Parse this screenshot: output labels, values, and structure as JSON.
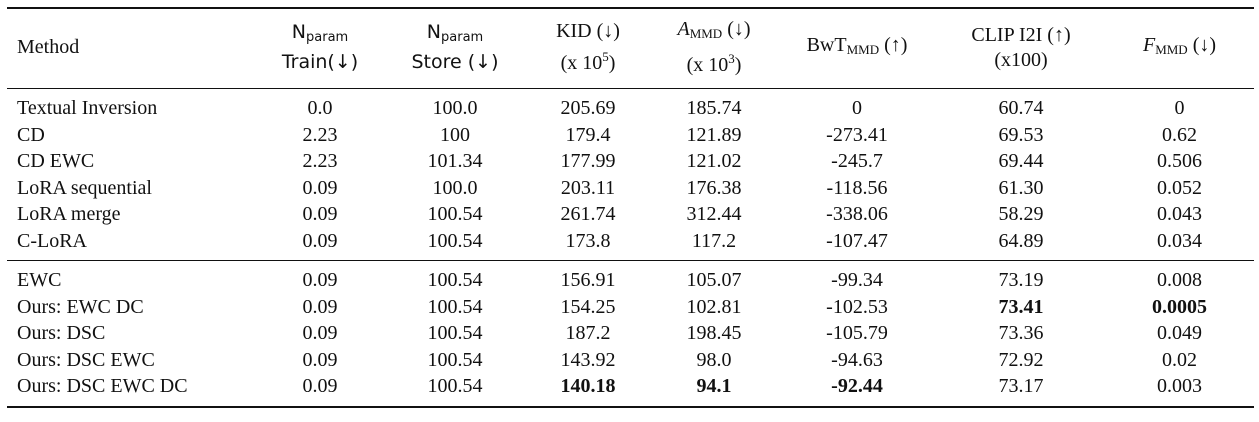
{
  "header": {
    "method": "Method",
    "n_param_sym": "N",
    "n_param_sub": "param",
    "train": "Train(↓)",
    "store": "Store (↓)",
    "kid": "KID (↓)",
    "kid_scale": "(x 10",
    "kid_exp": "5",
    "kid_close": ")",
    "ammd_sym": "A",
    "ammd_sub": "MMD",
    "ammd_arrow": "(↓)",
    "ammd_scale": "(x 10",
    "ammd_exp": "3",
    "ammd_close": ")",
    "bwt_sym": "BwT",
    "bwt_sub": "MMD",
    "bwt_arrow": "(↑)",
    "clip": "CLIP I2I (↑)",
    "clip_scale": "(x100)",
    "f_sym": "F",
    "f_sub": "MMD",
    "f_arrow": "(↓)"
  },
  "group1": [
    {
      "method": "Textual Inversion",
      "train": "0.0",
      "store": "100.0",
      "kid": "205.69",
      "ammd": "185.74",
      "bwt": "0",
      "clip": "60.74",
      "fmmd": "0"
    },
    {
      "method": "CD",
      "train": "2.23",
      "store": "100",
      "kid": "179.4",
      "ammd": "121.89",
      "bwt": "-273.41",
      "clip": "69.53",
      "fmmd": "0.62"
    },
    {
      "method": "CD EWC",
      "train": "2.23",
      "store": "101.34",
      "kid": "177.99",
      "ammd": "121.02",
      "bwt": "-245.7",
      "clip": "69.44",
      "fmmd": "0.506"
    },
    {
      "method": "LoRA sequential",
      "train": "0.09",
      "store": "100.0",
      "kid": "203.11",
      "ammd": "176.38",
      "bwt": "-118.56",
      "clip": "61.30",
      "fmmd": "0.052"
    },
    {
      "method": "LoRA merge",
      "train": "0.09",
      "store": "100.54",
      "kid": "261.74",
      "ammd": "312.44",
      "bwt": "-338.06",
      "clip": "58.29",
      "fmmd": "0.043"
    },
    {
      "method": "C-LoRA",
      "train": "0.09",
      "store": "100.54",
      "kid": "173.8",
      "ammd": "117.2",
      "bwt": "-107.47",
      "clip": "64.89",
      "fmmd": "0.034"
    }
  ],
  "group2": [
    {
      "method": "EWC",
      "train": "0.09",
      "store": "100.54",
      "kid": "156.91",
      "ammd": "105.07",
      "bwt": "-99.34",
      "clip": "73.19",
      "fmmd": "0.008"
    },
    {
      "method": "Ours: EWC DC",
      "train": "0.09",
      "store": "100.54",
      "kid": "154.25",
      "ammd": "102.81",
      "bwt": "-102.53",
      "clip": "73.41",
      "fmmd": "0.0005"
    },
    {
      "method": "Ours: DSC",
      "train": "0.09",
      "store": "100.54",
      "kid": "187.2",
      "ammd": "198.45",
      "bwt": "-105.79",
      "clip": "73.36",
      "fmmd": "0.049"
    },
    {
      "method": "Ours: DSC EWC",
      "train": "0.09",
      "store": "100.54",
      "kid": "143.92",
      "ammd": "98.0",
      "bwt": "-94.63",
      "clip": "72.92",
      "fmmd": "0.02"
    },
    {
      "method": "Ours: DSC EWC DC",
      "train": "0.09",
      "store": "100.54",
      "kid": "140.18",
      "ammd": "94.1",
      "bwt": "-92.44",
      "clip": "73.17",
      "fmmd": "0.003"
    }
  ]
}
